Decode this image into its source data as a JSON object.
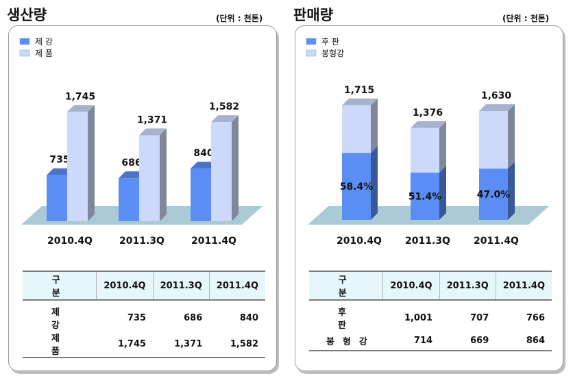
{
  "production": {
    "title": "생산량",
    "unit": "(단위 : 천톤)",
    "legend": [
      "제 강",
      "제 품"
    ],
    "table_header": [
      "구  분",
      "2010.4Q",
      "2011.3Q",
      "2011.4Q"
    ],
    "table_rows": [
      {
        "label": "제 강",
        "values": [
          "735",
          "686",
          "840"
        ]
      },
      {
        "label": "제 품",
        "values": [
          "1,745",
          "1,371",
          "1,582"
        ]
      }
    ]
  },
  "sales": {
    "title": "판매량",
    "unit": "(단위 : 천톤)",
    "legend": [
      "후 판",
      "봉형강"
    ],
    "table_header": [
      "구  분",
      "2010.4Q",
      "2011.3Q",
      "2011.4Q"
    ],
    "table_rows": [
      {
        "label": "후 판",
        "values": [
          "1,001",
          "707",
          "766"
        ]
      },
      {
        "label": "봉형강",
        "values": [
          "714",
          "669",
          "864"
        ]
      }
    ]
  },
  "chart_data": [
    {
      "type": "bar",
      "title": "생산량",
      "categories": [
        "2010.4Q",
        "2011.3Q",
        "2011.4Q"
      ],
      "series": [
        {
          "name": "제 강",
          "values": [
            735,
            686,
            840
          ],
          "color": "#5b8ef5"
        },
        {
          "name": "제 품",
          "values": [
            1745,
            1371,
            1582
          ],
          "color": "#ccd9fb"
        }
      ],
      "data_labels": [
        "735",
        "1,745",
        "686",
        "1,371",
        "840",
        "1,582"
      ],
      "ylim": [
        0,
        2200
      ],
      "grid": false,
      "legend_position": "top-left"
    },
    {
      "type": "bar",
      "stacked": true,
      "title": "판매량",
      "categories": [
        "2010.4Q",
        "2011.3Q",
        "2011.4Q"
      ],
      "series": [
        {
          "name": "후 판",
          "values": [
            1001,
            707,
            766
          ],
          "color": "#5b8ef5"
        },
        {
          "name": "봉형강",
          "values": [
            714,
            669,
            864
          ],
          "color": "#ccd9fb"
        }
      ],
      "totals": [
        1715,
        1376,
        1630
      ],
      "total_labels": [
        "1,715",
        "1,376",
        "1,630"
      ],
      "share_labels": [
        "58.4%",
        "51.4%",
        "47.0%"
      ],
      "ylim": [
        0,
        2200
      ],
      "grid": false,
      "legend_position": "top-left"
    }
  ]
}
